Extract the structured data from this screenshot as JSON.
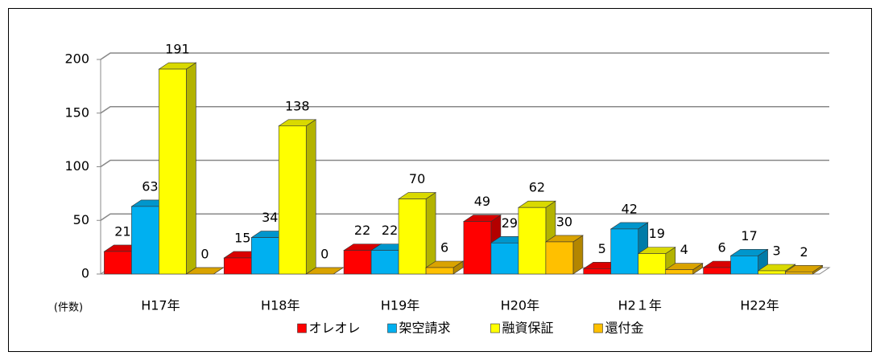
{
  "chart_data": {
    "type": "bar3d",
    "unit_label": "(件数)",
    "categories": [
      "H17年",
      "H18年",
      "H19年",
      "H20年",
      "H2１年",
      "H22年"
    ],
    "series": [
      {
        "name": "オレオレ",
        "color": "#ff0000",
        "values": [
          21,
          15,
          22,
          49,
          5,
          6
        ]
      },
      {
        "name": "架空請求",
        "color": "#00b0f0",
        "values": [
          63,
          34,
          22,
          29,
          42,
          17
        ]
      },
      {
        "name": "融資保証",
        "color": "#ffff00",
        "values": [
          191,
          138,
          70,
          62,
          19,
          3
        ]
      },
      {
        "name": "還付金",
        "color": "#ffc000",
        "values": [
          0,
          0,
          6,
          30,
          4,
          2
        ]
      }
    ],
    "ylim": [
      0,
      200
    ],
    "yticks": [
      0,
      50,
      100,
      150,
      200
    ],
    "grid": true,
    "legend": "bottom"
  }
}
